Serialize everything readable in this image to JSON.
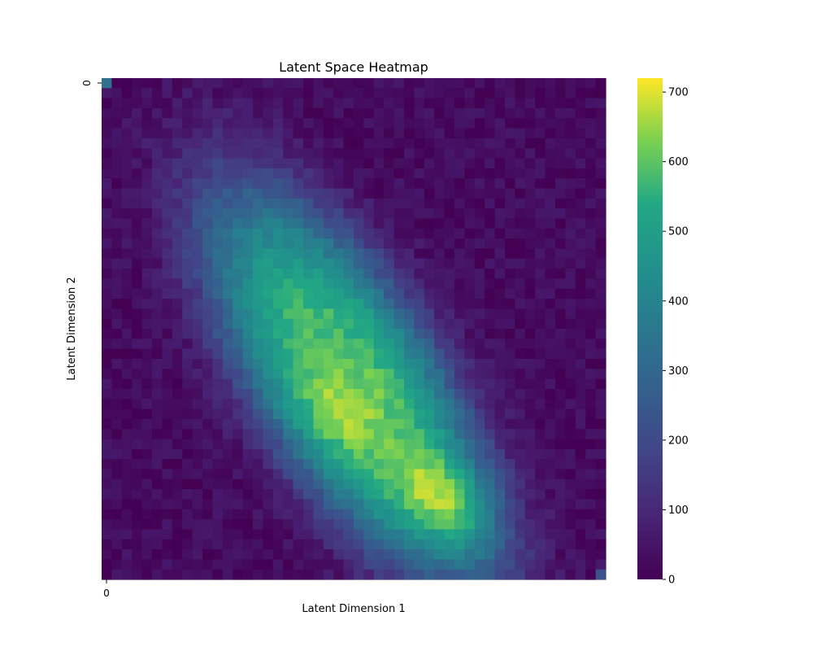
{
  "chart_data": {
    "type": "heatmap",
    "title": "Latent Space Heatmap",
    "xlabel": "Latent Dimension 1",
    "ylabel": "Latent Dimension 2",
    "x_tick_labels": [
      "0"
    ],
    "y_tick_labels": [
      "0"
    ],
    "grid_size": [
      50,
      50
    ],
    "colormap": "viridis",
    "color_range": [
      0,
      720
    ],
    "colorbar_ticks": [
      0,
      100,
      200,
      300,
      400,
      500,
      600,
      700
    ],
    "colorbar_tick_labels": [
      "0",
      "100",
      "200",
      "300",
      "400",
      "500",
      "600",
      "700"
    ],
    "distribution": {
      "shape": "elongated diagonal blob from upper-left to lower-right",
      "background_level": 25,
      "peak_value": 720,
      "peak_cell": {
        "row": 42,
        "col": 34
      },
      "secondary_peak": {
        "row": 33,
        "col": 23,
        "value": 630
      },
      "corner_values": {
        "top_left": 330,
        "bottom_right": 220
      }
    },
    "colors": {
      "low": "#440154",
      "mid": "#21918c",
      "high": "#fde725"
    }
  }
}
